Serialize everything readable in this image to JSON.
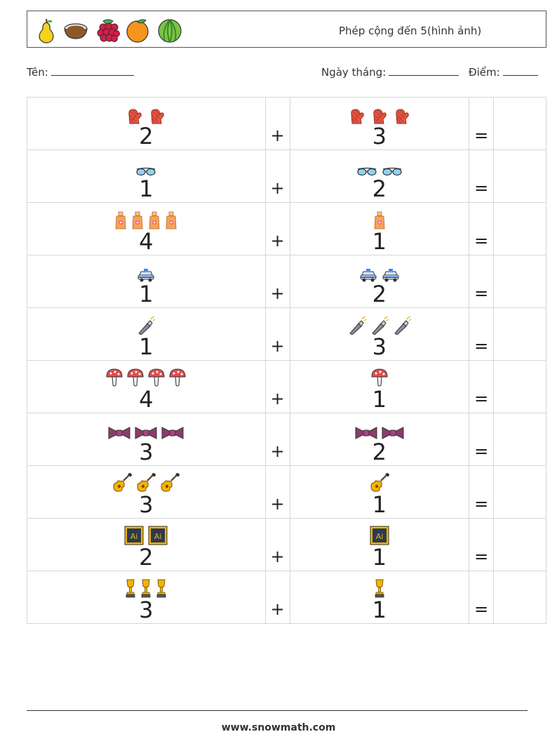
{
  "header": {
    "title": "Phép cộng đến 5(hình ảnh)",
    "fruits": [
      "pear-icon",
      "coconut-icon",
      "raspberry-icon",
      "orange-icon",
      "watermelon-icon"
    ]
  },
  "fields": {
    "name_label": "Tên:",
    "date_label": "Ngày tháng:",
    "score_label": "Điểm:"
  },
  "operator": "+",
  "equals": "=",
  "problems": [
    {
      "a": 2,
      "b": 3,
      "icon": "mitten-icon"
    },
    {
      "a": 1,
      "b": 2,
      "icon": "glasses-icon"
    },
    {
      "a": 4,
      "b": 1,
      "icon": "sunscreen-icon"
    },
    {
      "a": 1,
      "b": 2,
      "icon": "police-car-icon"
    },
    {
      "a": 1,
      "b": 3,
      "icon": "flashlight-icon"
    },
    {
      "a": 4,
      "b": 1,
      "icon": "mushroom-icon"
    },
    {
      "a": 3,
      "b": 2,
      "icon": "bow-tie-icon"
    },
    {
      "a": 3,
      "b": 1,
      "icon": "guitar-icon"
    },
    {
      "a": 2,
      "b": 1,
      "icon": "illustrator-icon"
    },
    {
      "a": 3,
      "b": 1,
      "icon": "trophy-icon"
    }
  ],
  "footer": {
    "url": "www.snowmath.com"
  }
}
